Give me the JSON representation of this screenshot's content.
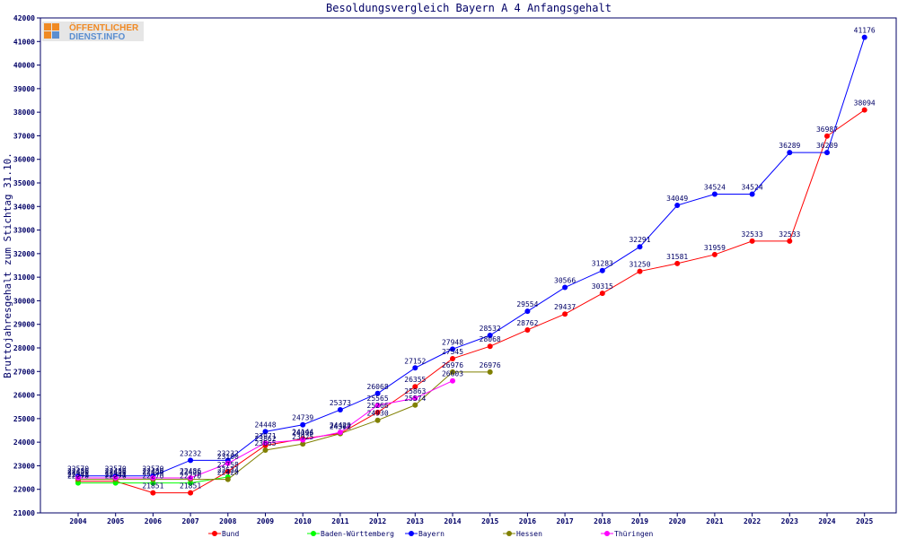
{
  "logo": {
    "line1": "ÖFFENTLICHER",
    "line2": "DIENST.INFO"
  },
  "chart_data": {
    "type": "line",
    "title": "Besoldungsvergleich Bayern A 4 Anfangsgehalt",
    "xlabel": "",
    "ylabel": "Bruttojahresgehalt zum Stichtag 31.10.",
    "categories": [
      "2004",
      "2005",
      "2006",
      "2007",
      "2008",
      "2009",
      "2010",
      "2011",
      "2012",
      "2013",
      "2014",
      "2015",
      "2016",
      "2017",
      "2018",
      "2019",
      "2020",
      "2021",
      "2022",
      "2023",
      "2024",
      "2025"
    ],
    "ylim": [
      21000,
      42000
    ],
    "yticks": [
      21000,
      22000,
      23000,
      24000,
      25000,
      26000,
      27000,
      28000,
      29000,
      30000,
      31000,
      32000,
      33000,
      34000,
      35000,
      36000,
      37000,
      38000,
      39000,
      40000,
      41000,
      42000
    ],
    "grid": false,
    "legend_position": "bottom",
    "series": [
      {
        "name": "Bund",
        "color": "#ff0000",
        "values": [
          22341,
          22341,
          21851,
          21851,
          22758,
          23862,
          24144,
          24372,
          25266,
          26355,
          27545,
          28068,
          28762,
          29437,
          30315,
          31250,
          31581,
          31959,
          32533,
          32533,
          36987,
          38094
        ]
      },
      {
        "name": "Baden-Württemberg",
        "color": "#00ff00",
        "values": [
          22270,
          22270,
          22270,
          22270,
          22524,
          null,
          null,
          null,
          null,
          null,
          null,
          null,
          null,
          null,
          null,
          null,
          null,
          null,
          null,
          null,
          null,
          null
        ]
      },
      {
        "name": "Bayern",
        "color": "#0000ff",
        "values": [
          22570,
          22570,
          22570,
          23232,
          23232,
          24448,
          24739,
          25373,
          26068,
          27152,
          27948,
          28532,
          29554,
          30566,
          31283,
          32291,
          34049,
          34524,
          34524,
          36289,
          36289,
          41176
        ]
      },
      {
        "name": "Hessen",
        "color": "#808000",
        "values": [
          22420,
          22420,
          22420,
          22420,
          22420,
          23665,
          23925,
          24362,
          24930,
          25574,
          26976,
          26976,
          null,
          null,
          null,
          null,
          null,
          null,
          null,
          null,
          null,
          null
        ]
      },
      {
        "name": "Thüringen",
        "color": "#ff00ff",
        "values": [
          22486,
          22486,
          22486,
          22486,
          23100,
          23971,
          24096,
          24420,
          25565,
          25863,
          26603,
          null,
          null,
          null,
          null,
          null,
          null,
          null,
          null,
          null,
          null,
          null
        ]
      }
    ]
  }
}
